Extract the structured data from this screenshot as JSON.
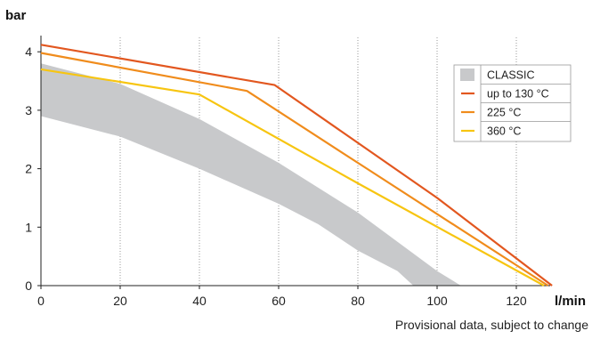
{
  "chart_data": {
    "type": "line",
    "xlabel": "l/min",
    "ylabel": "bar",
    "xlim": [
      0,
      130
    ],
    "ylim": [
      0,
      4.2
    ],
    "x_ticks": [
      0,
      20,
      40,
      60,
      80,
      100,
      120
    ],
    "y_ticks": [
      0,
      1,
      2,
      3,
      4
    ],
    "grid": "vertical dashed",
    "legend_position": "top-right",
    "band": {
      "name": "CLASSIC",
      "color": "#c8c9cb",
      "upper": [
        [
          0,
          3.8
        ],
        [
          20,
          3.45
        ],
        [
          40,
          2.85
        ],
        [
          60,
          2.1
        ],
        [
          80,
          1.25
        ],
        [
          90,
          0.75
        ],
        [
          100,
          0.25
        ],
        [
          106,
          0
        ]
      ],
      "lower": [
        [
          0,
          2.9
        ],
        [
          20,
          2.55
        ],
        [
          40,
          2.0
        ],
        [
          60,
          1.4
        ],
        [
          70,
          1.05
        ],
        [
          80,
          0.6
        ],
        [
          90,
          0.25
        ],
        [
          94,
          0
        ]
      ]
    },
    "series": [
      {
        "name": "up to 130 °C",
        "color": "#e2571f",
        "points": [
          [
            0,
            4.12
          ],
          [
            59,
            3.43
          ],
          [
            100,
            1.5
          ],
          [
            129,
            0
          ]
        ]
      },
      {
        "name": "225 °C",
        "color": "#f08c1c",
        "points": [
          [
            0,
            3.98
          ],
          [
            52,
            3.33
          ],
          [
            80,
            2.1
          ],
          [
            128,
            0
          ]
        ]
      },
      {
        "name": "360 °C",
        "color": "#f7c511",
        "points": [
          [
            0,
            3.7
          ],
          [
            40,
            3.27
          ],
          [
            80,
            1.75
          ],
          [
            127,
            0
          ]
        ]
      }
    ]
  },
  "footnote": "Provisional data, subject to change"
}
